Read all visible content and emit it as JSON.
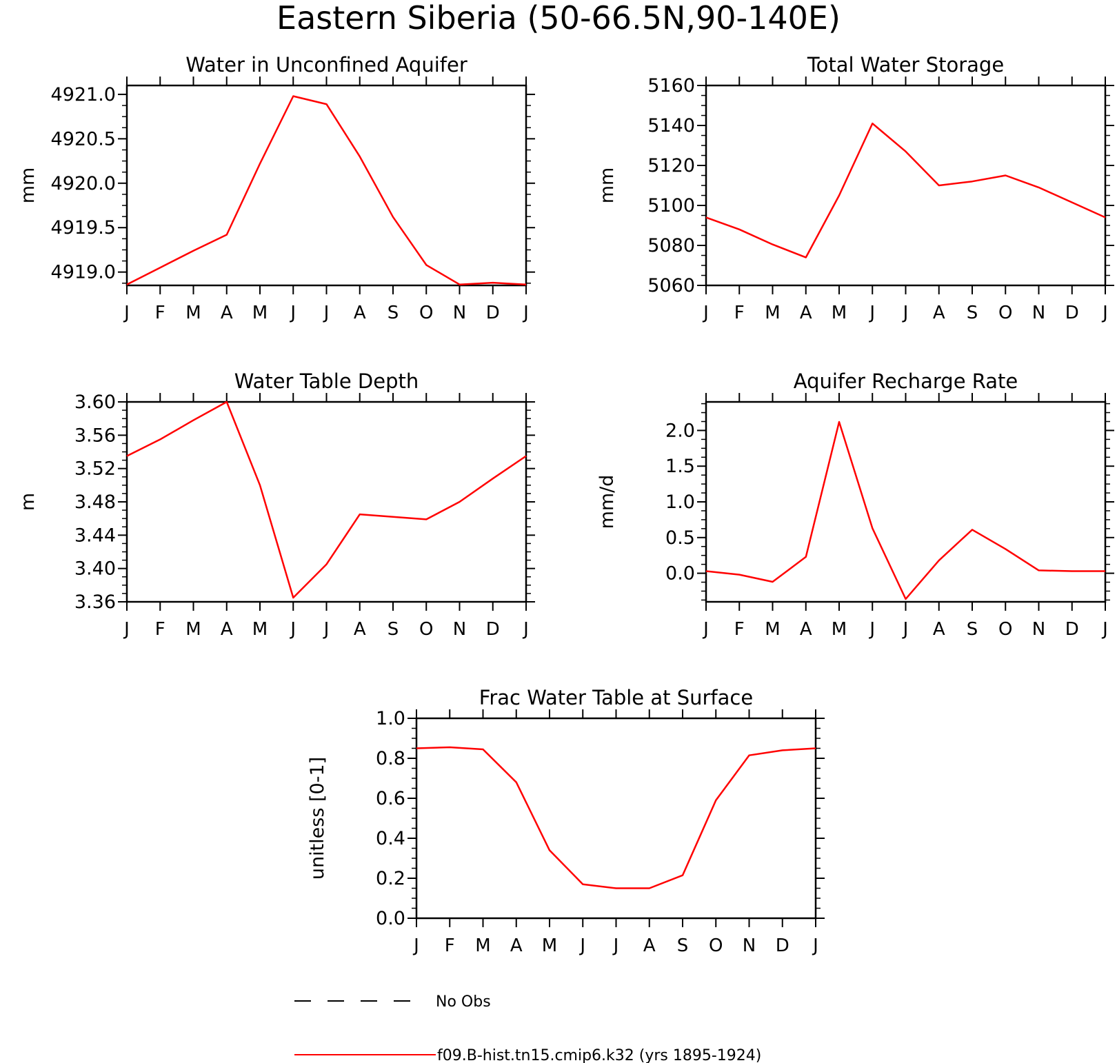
{
  "figure_title": "Eastern Siberia (50-66.5N,90-140E)",
  "legend": {
    "items": [
      {
        "label": "No Obs",
        "style": "dashed",
        "color": "#000000"
      },
      {
        "label": "f09.B-hist.tn15.cmip6.k32 (yrs 1895-1924)",
        "style": "solid",
        "color": "#ff0000"
      }
    ],
    "placement": "bottom-center"
  },
  "chart_data": [
    {
      "type": "line",
      "title": "Water in Unconfined Aquifer",
      "ylabel": "mm",
      "xlabel": "",
      "x": [
        "J",
        "F",
        "M",
        "A",
        "M",
        "J",
        "J",
        "A",
        "S",
        "O",
        "N",
        "D",
        "J"
      ],
      "ylim": [
        4918.85,
        4921.1
      ],
      "yticks": [
        "4919.0",
        "4919.5",
        "4920.0",
        "4920.5",
        "4921.0"
      ],
      "grid": false,
      "series": [
        {
          "name": "f09.B-hist.tn15.cmip6.k32 (yrs 1895-1924)",
          "color": "#ff0000",
          "values": [
            4918.86,
            4919.05,
            4919.24,
            4919.42,
            4920.22,
            4920.98,
            4920.89,
            4920.3,
            4919.62,
            4919.08,
            4918.86,
            4918.88,
            4918.86
          ]
        }
      ]
    },
    {
      "type": "line",
      "title": "Total Water Storage",
      "ylabel": "mm",
      "xlabel": "",
      "x": [
        "J",
        "F",
        "M",
        "A",
        "M",
        "J",
        "J",
        "A",
        "S",
        "O",
        "N",
        "D",
        "J"
      ],
      "ylim": [
        5060,
        5160
      ],
      "yticks": [
        "5060",
        "5080",
        "5100",
        "5120",
        "5140",
        "5160"
      ],
      "grid": false,
      "series": [
        {
          "name": "f09.B-hist.tn15.cmip6.k32 (yrs 1895-1924)",
          "color": "#ff0000",
          "values": [
            5094,
            5088,
            5080.5,
            5074,
            5105,
            5141,
            5127,
            5110,
            5112,
            5115,
            5109,
            5101.5,
            5094
          ]
        }
      ]
    },
    {
      "type": "line",
      "title": "Water Table Depth",
      "ylabel": "m",
      "xlabel": "",
      "x": [
        "J",
        "F",
        "M",
        "A",
        "M",
        "J",
        "J",
        "A",
        "S",
        "O",
        "N",
        "D",
        "J"
      ],
      "ylim": [
        3.36,
        3.6
      ],
      "yticks": [
        "3.36",
        "3.40",
        "3.44",
        "3.48",
        "3.52",
        "3.56",
        "3.60"
      ],
      "grid": false,
      "series": [
        {
          "name": "f09.B-hist.tn15.cmip6.k32 (yrs 1895-1924)",
          "color": "#ff0000",
          "values": [
            3.535,
            3.555,
            3.578,
            3.6,
            3.5,
            3.365,
            3.405,
            3.465,
            3.462,
            3.459,
            3.48,
            3.508,
            3.535
          ]
        }
      ]
    },
    {
      "type": "line",
      "title": "Aquifer Recharge Rate",
      "ylabel": "mm/d",
      "xlabel": "",
      "x": [
        "J",
        "F",
        "M",
        "A",
        "M",
        "J",
        "J",
        "A",
        "S",
        "O",
        "N",
        "D",
        "J"
      ],
      "ylim": [
        -0.4,
        2.4
      ],
      "yticks": [
        "0.0",
        "0.5",
        "1.0",
        "1.5",
        "2.0"
      ],
      "grid": false,
      "series": [
        {
          "name": "f09.B-hist.tn15.cmip6.k32 (yrs 1895-1924)",
          "color": "#ff0000",
          "values": [
            0.03,
            -0.02,
            -0.12,
            0.23,
            2.12,
            0.63,
            -0.36,
            0.18,
            0.61,
            0.34,
            0.04,
            0.03,
            0.03
          ]
        }
      ]
    },
    {
      "type": "line",
      "title": "Frac Water Table at Surface",
      "ylabel": "unitless [0-1]",
      "xlabel": "",
      "x": [
        "J",
        "F",
        "M",
        "A",
        "M",
        "J",
        "J",
        "A",
        "S",
        "O",
        "N",
        "D",
        "J"
      ],
      "ylim": [
        0.0,
        1.0
      ],
      "yticks": [
        "0.0",
        "0.2",
        "0.4",
        "0.6",
        "0.8",
        "1.0"
      ],
      "grid": false,
      "series": [
        {
          "name": "f09.B-hist.tn15.cmip6.k32 (yrs 1895-1924)",
          "color": "#ff0000",
          "values": [
            0.85,
            0.855,
            0.845,
            0.68,
            0.34,
            0.17,
            0.15,
            0.15,
            0.215,
            0.59,
            0.815,
            0.84,
            0.85
          ]
        }
      ]
    }
  ]
}
